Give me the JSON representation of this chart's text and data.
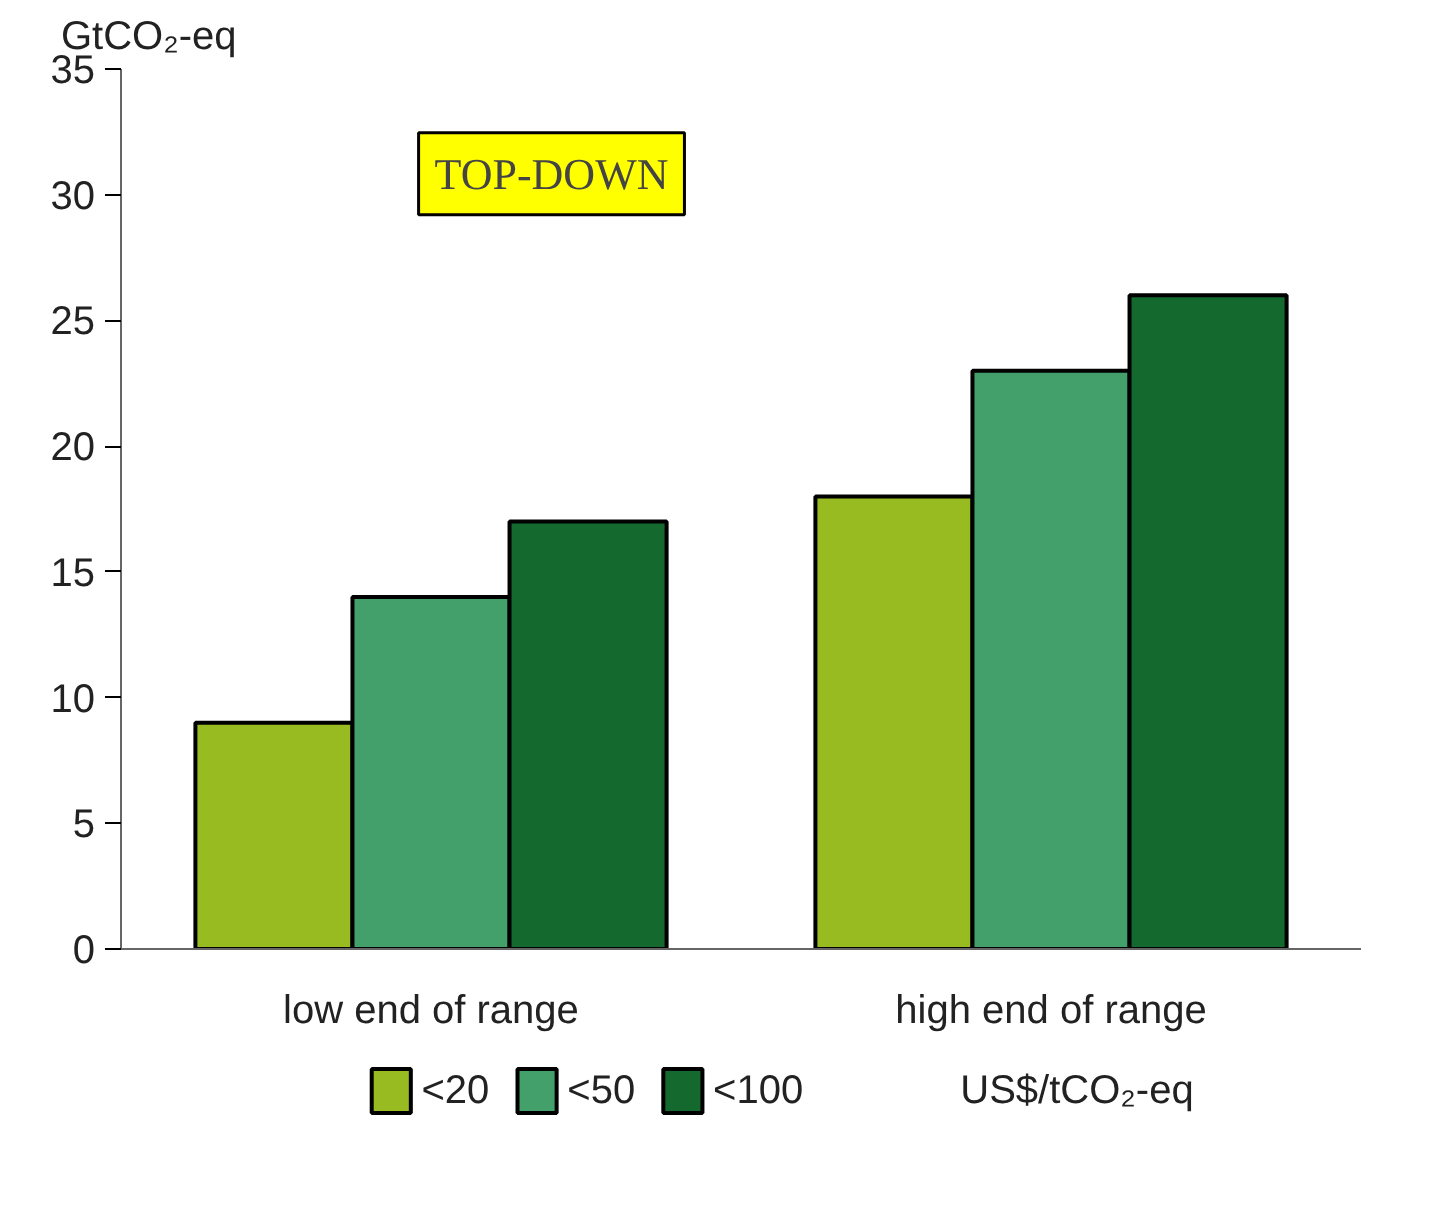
{
  "chart_data": {
    "type": "bar",
    "ylabel": "GtCO₂-eq",
    "legend_title": "US$/tCO₂-eq",
    "categories": [
      "low end of range",
      "high end of range"
    ],
    "series": [
      {
        "name": "<20",
        "color": "#99bb22",
        "values": [
          9,
          18
        ]
      },
      {
        "name": "<50",
        "color": "#44a06a",
        "values": [
          14,
          23
        ]
      },
      {
        "name": "<100",
        "color": "#13692e",
        "values": [
          17,
          26
        ]
      }
    ],
    "ylim": [
      0,
      35
    ],
    "yticks": [
      0,
      5,
      10,
      15,
      20,
      25,
      30,
      35
    ],
    "grid": false,
    "legend": "bottom",
    "annotations": [
      "TOP-DOWN"
    ]
  }
}
